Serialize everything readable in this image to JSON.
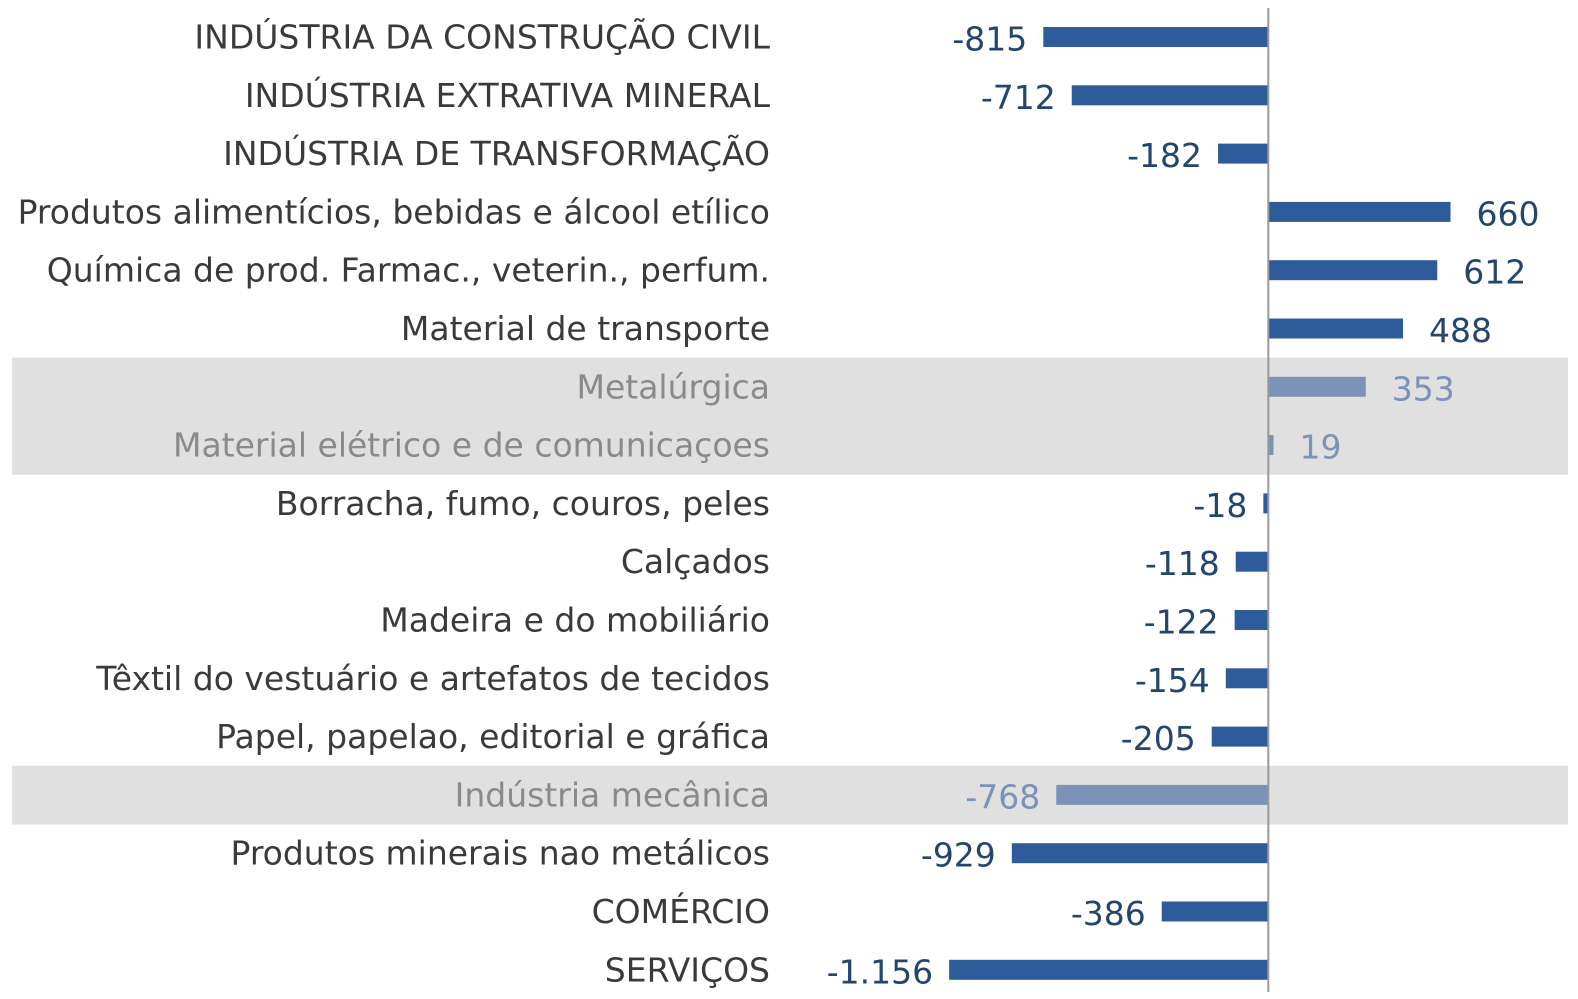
{
  "chart_data": {
    "type": "bar",
    "orientation": "horizontal",
    "categories": [
      "INDÚSTRIA DA CONSTRUÇÃO CIVIL",
      "INDÚSTRIA EXTRATIVA MINERAL",
      "INDÚSTRIA DE TRANSFORMAÇÃO",
      "Produtos alimentícios, bebidas e álcool etílico",
      "Química de prod. Farmac., veterin., perfum.",
      "Material de transporte",
      "Metalúrgica",
      "Material elétrico e de comunicaçoes",
      "Borracha, fumo, couros, peles",
      "Calçados",
      "Madeira e do mobiliário",
      "Têxtil do vestuário e artefatos de tecidos",
      "Papel, papelao, editorial e gráfica",
      "Indústria mecânica",
      "Produtos minerais nao metálicos",
      "COMÉRCIO",
      "SERVIÇOS"
    ],
    "values": [
      -815,
      -712,
      -182,
      660,
      612,
      488,
      353,
      19,
      -18,
      -118,
      -122,
      -154,
      -205,
      -768,
      -929,
      -386,
      -1156
    ],
    "value_labels": [
      "-815",
      "-712",
      "-182",
      "660",
      "612",
      "488",
      "353",
      "19",
      "-18",
      "-118",
      "-122",
      "-154",
      "-205",
      "-768",
      "-929",
      "-386",
      "-1.156"
    ],
    "color": "#2e5c9a",
    "highlight_color": "#7b93b6",
    "highlight_band_color": "#e0e0e0",
    "highlighted": [
      6,
      7,
      13
    ],
    "xlim": [
      -1200,
      1100
    ]
  }
}
